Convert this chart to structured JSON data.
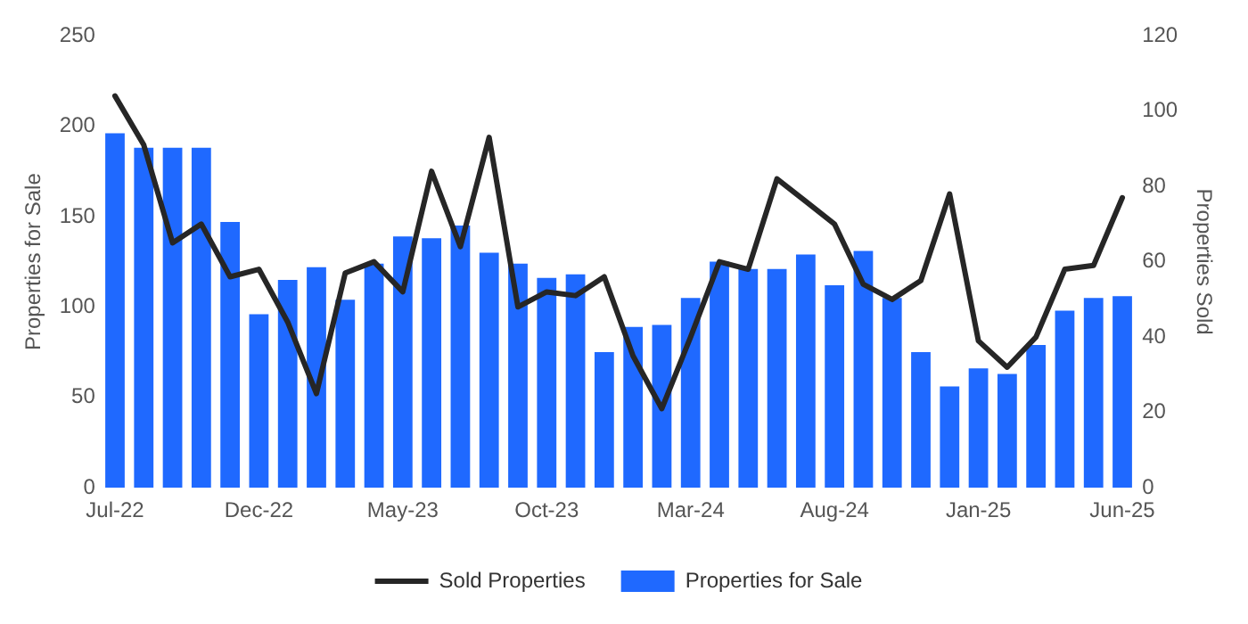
{
  "chart_data": {
    "type": "bar",
    "categories": [
      "Jul-22",
      null,
      null,
      null,
      null,
      "Dec-22",
      null,
      null,
      null,
      null,
      "May-23",
      null,
      null,
      null,
      null,
      "Oct-23",
      null,
      null,
      null,
      null,
      "Mar-24",
      null,
      null,
      null,
      null,
      "Aug-24",
      null,
      null,
      null,
      null,
      "Jan-25",
      null,
      null,
      null,
      null,
      "Jun-25"
    ],
    "series": [
      {
        "name": "Sold Properties",
        "type": "line",
        "axis": "y2",
        "color": "#262626",
        "values": [
          104,
          91,
          65,
          70,
          56,
          58,
          44,
          25,
          57,
          60,
          52,
          84,
          64,
          93,
          48,
          52,
          51,
          56,
          35,
          21,
          40,
          60,
          58,
          82,
          76,
          70,
          54,
          50,
          55,
          78,
          39,
          32,
          40,
          58,
          59,
          77
        ]
      },
      {
        "name": "Properties for Sale",
        "color": "#1f69ff",
        "values": [
          196,
          188,
          188,
          188,
          147,
          96,
          115,
          122,
          104,
          124,
          139,
          138,
          145,
          130,
          124,
          116,
          118,
          75,
          89,
          90,
          105,
          125,
          121,
          121,
          129,
          112,
          131,
          105,
          75,
          56,
          66,
          63,
          79,
          98,
          105,
          106
        ]
      }
    ],
    "ylabel": "Properties for Sale",
    "y2label": "Properties Sold",
    "ylim": [
      0,
      250
    ],
    "yticks": [
      0,
      50,
      100,
      150,
      200,
      250
    ],
    "y2lim": [
      0,
      120
    ],
    "y2ticks": [
      0,
      20,
      40,
      60,
      80,
      100,
      120
    ],
    "grid": false,
    "legend": "bottom",
    "marker": "none",
    "line_style": "solid"
  }
}
